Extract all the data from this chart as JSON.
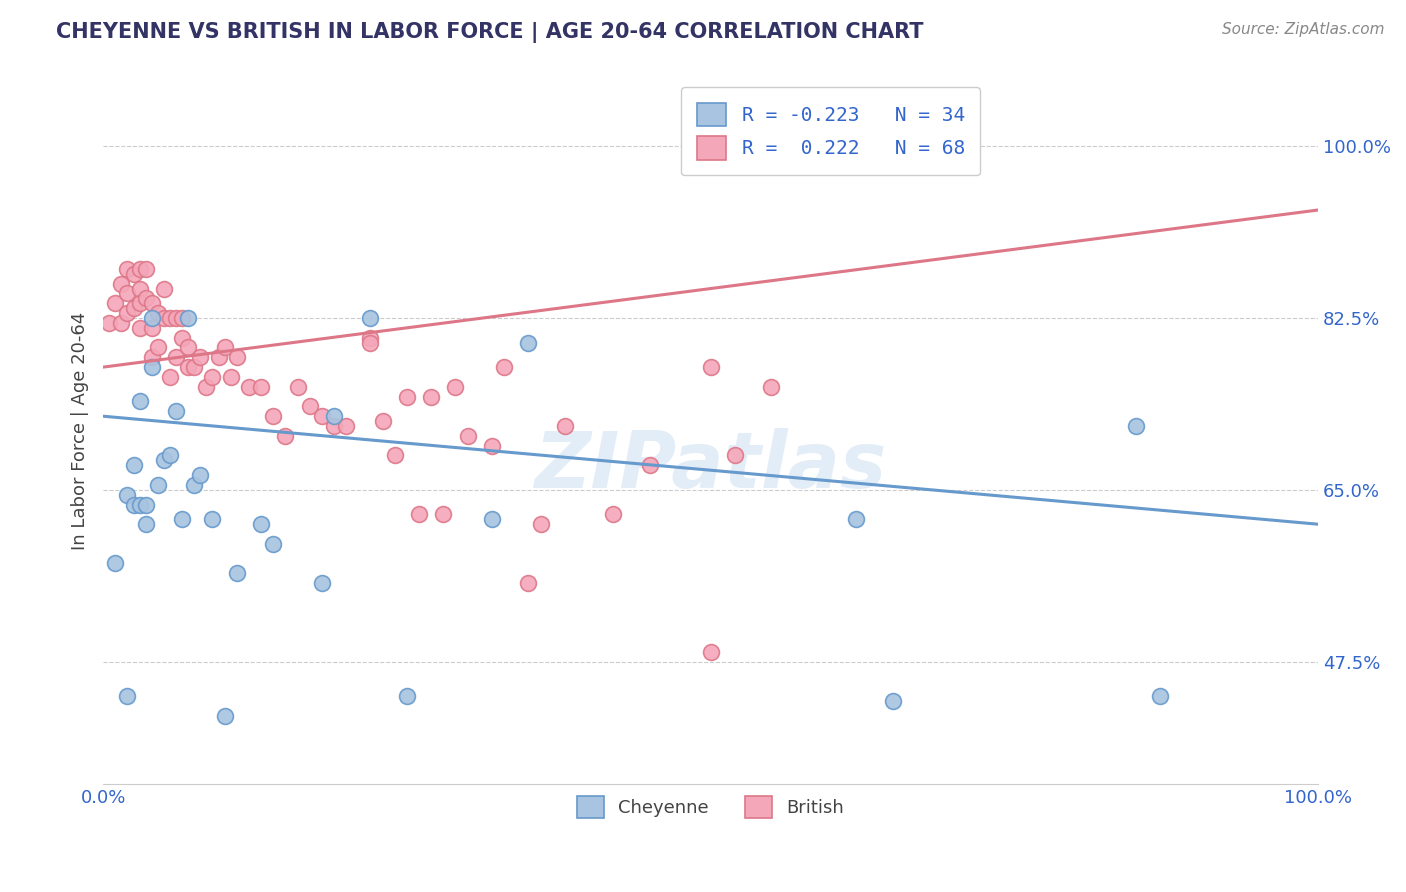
{
  "title": "CHEYENNE VS BRITISH IN LABOR FORCE | AGE 20-64 CORRELATION CHART",
  "source": "Source: ZipAtlas.com",
  "ylabel": "In Labor Force | Age 20-64",
  "xlim": [
    0.0,
    1.0
  ],
  "ylim": [
    0.35,
    1.07
  ],
  "yticks": [
    0.475,
    0.65,
    0.825,
    1.0
  ],
  "ytick_labels": [
    "47.5%",
    "65.0%",
    "82.5%",
    "100.0%"
  ],
  "cheyenne_color": "#a8c4e0",
  "british_color": "#f4a7b9",
  "cheyenne_edge_color": "#6699cc",
  "british_edge_color": "#dd7788",
  "cheyenne_line_color": "#6699cc",
  "british_line_color": "#dd7788",
  "cheyenne_scatter_x": [
    0.01,
    0.02,
    0.025,
    0.025,
    0.03,
    0.03,
    0.035,
    0.035,
    0.04,
    0.04,
    0.045,
    0.05,
    0.055,
    0.06,
    0.065,
    0.07,
    0.075,
    0.08,
    0.09,
    0.1,
    0.11,
    0.13,
    0.14,
    0.18,
    0.19,
    0.22,
    0.25,
    0.32,
    0.35,
    0.62,
    0.65,
    0.85,
    0.87,
    0.02
  ],
  "cheyenne_scatter_y": [
    0.575,
    0.645,
    0.675,
    0.635,
    0.74,
    0.635,
    0.635,
    0.615,
    0.825,
    0.775,
    0.655,
    0.68,
    0.685,
    0.73,
    0.62,
    0.825,
    0.655,
    0.665,
    0.62,
    0.42,
    0.565,
    0.615,
    0.595,
    0.555,
    0.725,
    0.825,
    0.44,
    0.62,
    0.8,
    0.62,
    0.435,
    0.715,
    0.44,
    0.44
  ],
  "british_scatter_x": [
    0.005,
    0.01,
    0.015,
    0.015,
    0.02,
    0.02,
    0.02,
    0.025,
    0.025,
    0.03,
    0.03,
    0.03,
    0.03,
    0.035,
    0.035,
    0.04,
    0.04,
    0.04,
    0.045,
    0.045,
    0.05,
    0.05,
    0.055,
    0.055,
    0.06,
    0.06,
    0.065,
    0.065,
    0.07,
    0.07,
    0.075,
    0.08,
    0.085,
    0.09,
    0.095,
    0.1,
    0.105,
    0.11,
    0.12,
    0.13,
    0.14,
    0.15,
    0.16,
    0.17,
    0.18,
    0.19,
    0.2,
    0.22,
    0.24,
    0.27,
    0.28,
    0.3,
    0.33,
    0.35,
    0.38,
    0.42,
    0.45,
    0.5,
    0.5,
    0.52,
    0.55,
    0.29,
    0.32,
    0.36,
    0.25,
    0.26,
    0.23,
    0.22
  ],
  "british_scatter_y": [
    0.82,
    0.84,
    0.86,
    0.82,
    0.85,
    0.83,
    0.875,
    0.835,
    0.87,
    0.855,
    0.815,
    0.875,
    0.84,
    0.845,
    0.875,
    0.84,
    0.785,
    0.815,
    0.795,
    0.83,
    0.825,
    0.855,
    0.825,
    0.765,
    0.785,
    0.825,
    0.825,
    0.805,
    0.795,
    0.775,
    0.775,
    0.785,
    0.755,
    0.765,
    0.785,
    0.795,
    0.765,
    0.785,
    0.755,
    0.755,
    0.725,
    0.705,
    0.755,
    0.735,
    0.725,
    0.715,
    0.715,
    0.805,
    0.685,
    0.745,
    0.625,
    0.705,
    0.775,
    0.555,
    0.715,
    0.625,
    0.675,
    0.775,
    0.485,
    0.685,
    0.755,
    0.755,
    0.695,
    0.615,
    0.745,
    0.625,
    0.72,
    0.8
  ],
  "cheyenne_trendline_x": [
    0.0,
    1.0
  ],
  "cheyenne_trendline_y": [
    0.725,
    0.615
  ],
  "british_trendline_x": [
    0.0,
    1.0
  ],
  "british_trendline_y": [
    0.775,
    0.935
  ]
}
